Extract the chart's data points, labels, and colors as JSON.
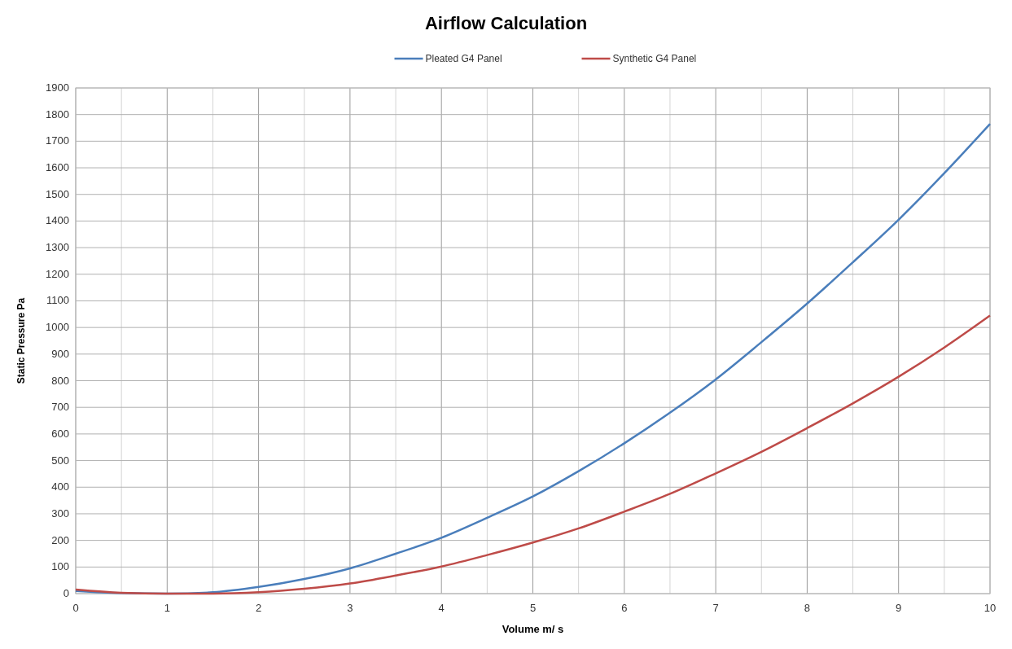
{
  "chart_data": {
    "type": "line",
    "title": "Airflow Calculation",
    "xlabel": "Volume m/ s",
    "ylabel": "Static Pressure  Pa",
    "x": [
      0,
      0.5,
      1,
      1.5,
      2,
      2.5,
      3,
      3.5,
      4,
      4.5,
      5,
      5.5,
      6,
      6.5,
      7,
      7.5,
      8,
      8.5,
      9,
      9.5,
      10
    ],
    "series": [
      {
        "name": "Pleated G4 Panel",
        "color": "#4a7ebb",
        "values": [
          10,
          2,
          0,
          5,
          25,
          55,
          95,
          150,
          210,
          285,
          365,
          460,
          565,
          680,
          805,
          945,
          1090,
          1245,
          1405,
          1580,
          1765
        ]
      },
      {
        "name": "Synthetic G4 Panel",
        "color": "#be4b48",
        "values": [
          15,
          3,
          0,
          0,
          5,
          18,
          38,
          68,
          102,
          145,
          192,
          245,
          308,
          375,
          452,
          533,
          622,
          715,
          815,
          925,
          1045
        ]
      }
    ],
    "xlim": [
      0,
      10
    ],
    "xticks": [
      0,
      {
        "value": 0.5,
        "label": null
      },
      1,
      {
        "value": 1.5,
        "label": null
      },
      2,
      {
        "value": 2.5,
        "label": null
      },
      3,
      {
        "value": 3.5,
        "label": null
      },
      4,
      {
        "value": 4.5,
        "label": null
      },
      5,
      {
        "value": 5.5,
        "label": null
      },
      6,
      {
        "value": 6.5,
        "label": null
      },
      7,
      {
        "value": 7.5,
        "label": null
      },
      8,
      {
        "value": 8.5,
        "label": null
      },
      9,
      {
        "value": 9.5,
        "label": null
      },
      10
    ],
    "ylim": [
      0,
      1900
    ],
    "yticks": [
      0,
      100,
      200,
      300,
      400,
      500,
      600,
      700,
      800,
      900,
      1000,
      1100,
      1200,
      1300,
      1400,
      1500,
      1600,
      1700,
      1800,
      1900
    ],
    "grid": true,
    "legend": "top",
    "marker": "none",
    "line_style": "solid"
  }
}
